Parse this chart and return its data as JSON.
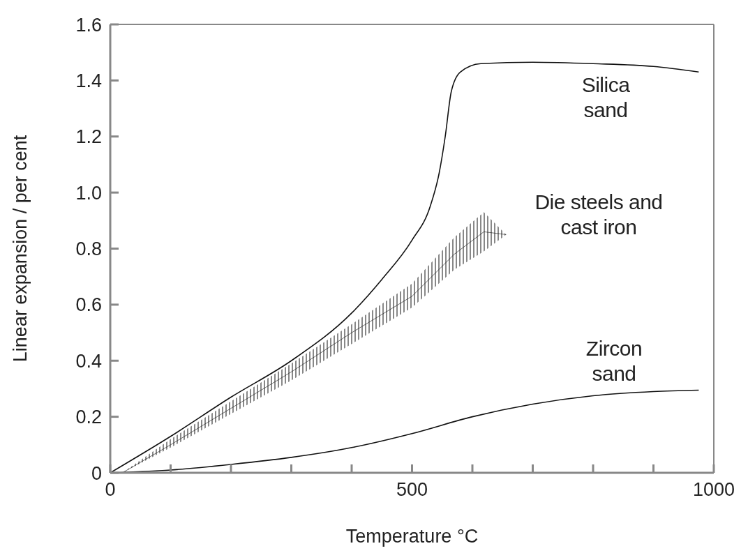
{
  "chart_data": {
    "type": "line",
    "xlabel": "Temperature °C",
    "ylabel": "Linear expansion / per cent",
    "marker": "none",
    "line_style": "solid",
    "grid": false,
    "xlim": [
      0,
      1000
    ],
    "xticks": [
      0,
      {
        "value": 100,
        "label": null
      },
      {
        "value": 200,
        "label": null
      },
      {
        "value": 300,
        "label": null
      },
      {
        "value": 400,
        "label": null
      },
      500,
      {
        "value": 600,
        "label": null
      },
      {
        "value": 700,
        "label": null
      },
      {
        "value": 800,
        "label": null
      },
      {
        "value": 900,
        "label": null
      },
      1000
    ],
    "ylim": [
      0,
      1.6
    ],
    "yticks": [
      0,
      0.2,
      0.4,
      0.6,
      0.8,
      {
        "value": 1,
        "label": "1.0"
      },
      1.2,
      1.4,
      1.6
    ],
    "series": [
      {
        "name": "Silica sand",
        "color": "#111111",
        "x": [
          0,
          100,
          200,
          300,
          400,
          450,
          500,
          530,
          545,
          555,
          565,
          580,
          614,
          700,
          800,
          900,
          975
        ],
        "values": [
          0,
          0.13,
          0.27,
          0.4,
          0.57,
          0.69,
          0.83,
          0.95,
          1.07,
          1.2,
          1.36,
          1.43,
          1.46,
          1.465,
          1.46,
          1.45,
          1.43
        ]
      },
      {
        "name": "Die steels and cast iron",
        "color": "#111111",
        "x": [
          20,
          100,
          200,
          300,
          400,
          500,
          570,
          619,
          656
        ],
        "values": [
          0,
          0.1,
          0.23,
          0.36,
          0.5,
          0.63,
          0.78,
          0.86,
          0.85
        ],
        "lower": [
          0,
          0.09,
          0.21,
          0.33,
          0.46,
          0.59,
          0.725,
          0.79,
          0.85
        ],
        "upper": [
          0,
          0.12,
          0.255,
          0.39,
          0.53,
          0.675,
          0.84,
          0.93,
          0.85
        ]
      },
      {
        "name": "Zircon sand",
        "color": "#111111",
        "x": [
          0,
          100,
          200,
          300,
          400,
          500,
          600,
          700,
          800,
          900,
          975
        ],
        "values": [
          0,
          0.01,
          0.03,
          0.055,
          0.09,
          0.14,
          0.2,
          0.245,
          0.275,
          0.29,
          0.295
        ]
      }
    ]
  }
}
